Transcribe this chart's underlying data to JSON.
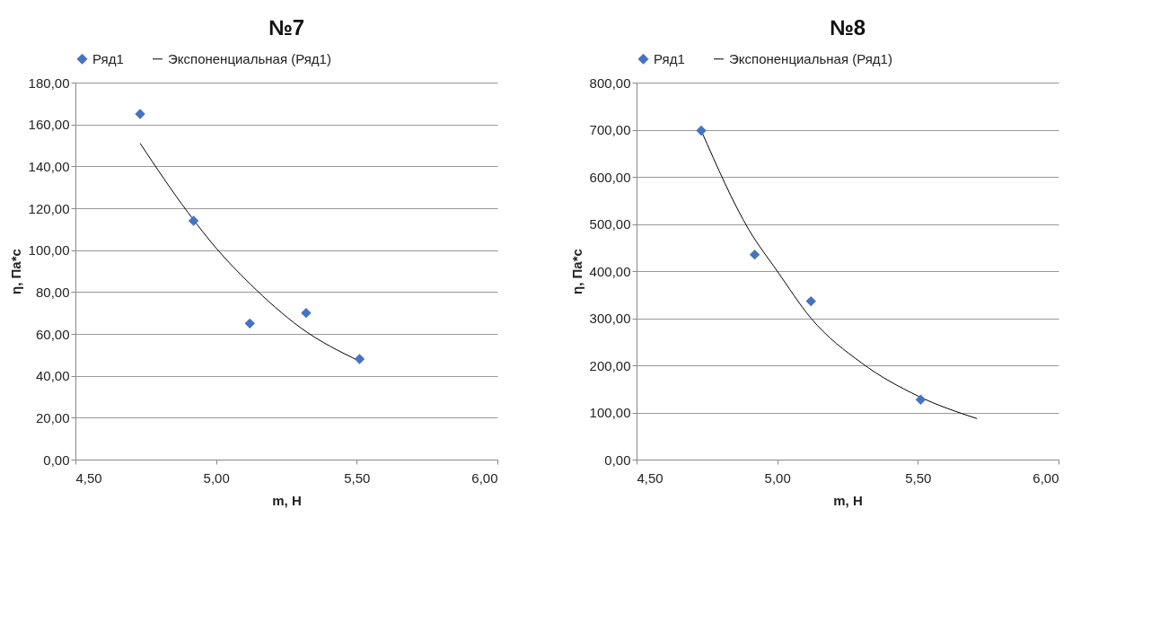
{
  "chart_data": [
    {
      "type": "scatter",
      "title": "№7",
      "xlabel": "m, Н",
      "ylabel": "η, Па*с",
      "legend": "top",
      "grid": "y",
      "xlim": [
        4.5,
        6.0
      ],
      "xticks": [
        {
          "value": 4.5,
          "label": "4,50"
        },
        {
          "value": 5.0,
          "label": "5,00"
        },
        {
          "value": 5.5,
          "label": "5,50"
        },
        {
          "value": 6.0,
          "label": "6,00"
        }
      ],
      "ylim": [
        0,
        180
      ],
      "yticks": [
        {
          "value": 0,
          "label": "0,00"
        },
        {
          "value": 20,
          "label": "20,00"
        },
        {
          "value": 40,
          "label": "40,00"
        },
        {
          "value": 60,
          "label": "60,00"
        },
        {
          "value": 80,
          "label": "80,00"
        },
        {
          "value": 100,
          "label": "100,00"
        },
        {
          "value": 120,
          "label": "120,00"
        },
        {
          "value": 140,
          "label": "140,00"
        },
        {
          "value": 160,
          "label": "160,00"
        },
        {
          "value": 180,
          "label": "180,00"
        }
      ],
      "series": [
        {
          "name": "Ряд1",
          "marker": "diamond",
          "color": "#4472c4",
          "x": [
            4.73,
            4.92,
            5.12,
            5.32,
            5.51
          ],
          "values": [
            165,
            114,
            65,
            70,
            48
          ]
        },
        {
          "name": "Экспоненциальная (Ряд1)",
          "type": "line",
          "marker": "none",
          "line_style": "solid",
          "color": "#000000",
          "x": [
            4.73,
            4.9,
            5.0,
            5.12,
            5.3,
            5.51
          ],
          "values": [
            151,
            118,
            101,
            84,
            63,
            47
          ]
        }
      ]
    },
    {
      "type": "scatter",
      "title": "№8",
      "xlabel": "m, Н",
      "ylabel": "η, Па*с",
      "legend": "top",
      "grid": "y",
      "xlim": [
        4.5,
        6.0
      ],
      "xticks": [
        {
          "value": 4.5,
          "label": "4,50"
        },
        {
          "value": 5.0,
          "label": "5,00"
        },
        {
          "value": 5.5,
          "label": "5,50"
        },
        {
          "value": 6.0,
          "label": "6,00"
        }
      ],
      "ylim": [
        0,
        800
      ],
      "yticks": [
        {
          "value": 0,
          "label": "0,00"
        },
        {
          "value": 100,
          "label": "100,00"
        },
        {
          "value": 200,
          "label": "200,00"
        },
        {
          "value": 300,
          "label": "300,00"
        },
        {
          "value": 400,
          "label": "400,00"
        },
        {
          "value": 500,
          "label": "500,00"
        },
        {
          "value": 600,
          "label": "600,00"
        },
        {
          "value": 700,
          "label": "700,00"
        },
        {
          "value": 800,
          "label": "800,00"
        }
      ],
      "series": [
        {
          "name": "Ряд1",
          "marker": "diamond",
          "color": "#4472c4",
          "x": [
            4.73,
            4.92,
            5.12,
            5.51
          ],
          "values": [
            698,
            435,
            336,
            127
          ]
        },
        {
          "name": "Экспоненциальная (Ряд1)",
          "type": "line",
          "marker": "none",
          "line_style": "solid",
          "color": "#000000",
          "x": [
            4.73,
            4.9,
            5.0,
            5.12,
            5.3,
            5.5,
            5.71
          ],
          "values": [
            698,
            487,
            400,
            300,
            205,
            135,
            87
          ]
        }
      ]
    }
  ]
}
